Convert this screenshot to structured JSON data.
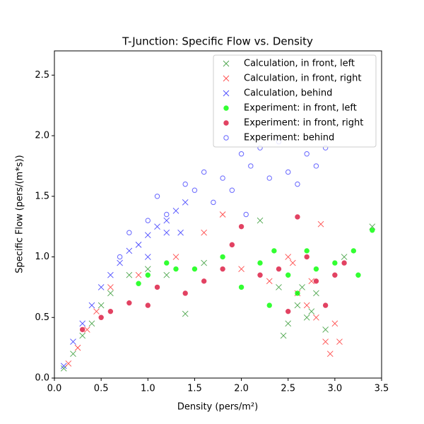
{
  "chart_data": {
    "type": "scatter",
    "title": "T-Junction: Specific Flow vs. Density",
    "x_label": "Density (pers/m²)",
    "y_label": "Specific Flow (pers/(m*s))",
    "xlim": [
      0,
      3.5
    ],
    "ylim": [
      0,
      2.7
    ],
    "xticks": [
      {
        "value": 0,
        "label": "0.0"
      },
      {
        "value": 0.5,
        "label": "0.5"
      },
      {
        "value": 1,
        "label": "1.0"
      },
      {
        "value": 1.5,
        "label": "1.5"
      },
      {
        "value": 2,
        "label": "2.0"
      },
      {
        "value": 2.5,
        "label": "2.5"
      },
      {
        "value": 3,
        "label": "3.0"
      },
      {
        "value": 3.5,
        "label": "3.5"
      }
    ],
    "yticks": [
      {
        "value": 0,
        "label": "0.0"
      },
      {
        "value": 0.5,
        "label": "0.5"
      },
      {
        "value": 1,
        "label": "1.0"
      },
      {
        "value": 1.5,
        "label": "1.5"
      },
      {
        "value": 2,
        "label": "2.0"
      },
      {
        "value": 2.5,
        "label": "2.5"
      }
    ],
    "legend": "upper right",
    "series": [
      {
        "name": "Calculation, in front, left",
        "color": "#008000",
        "marker": "x",
        "filled": false,
        "x": [
          0.1,
          0.2,
          0.3,
          0.4,
          0.5,
          0.6,
          0.8,
          1.0,
          1.2,
          1.4,
          1.6,
          2.2,
          2.4,
          2.5,
          2.6,
          2.7,
          2.8,
          2.9,
          3.1,
          3.4,
          2.45,
          2.65,
          2.75
        ],
        "values": [
          0.08,
          0.2,
          0.35,
          0.45,
          0.6,
          0.7,
          0.85,
          0.9,
          0.85,
          0.53,
          0.95,
          1.3,
          0.75,
          0.45,
          0.6,
          0.5,
          0.7,
          0.4,
          1.0,
          1.25,
          0.35,
          0.75,
          0.55
        ]
      },
      {
        "name": "Calculation, in front, right",
        "color": "#ff0000",
        "marker": "x",
        "filled": false,
        "x": [
          0.15,
          0.25,
          0.35,
          0.45,
          0.6,
          0.9,
          1.3,
          1.6,
          1.8,
          2.0,
          2.3,
          2.5,
          2.6,
          2.7,
          2.8,
          2.9,
          2.95,
          3.0,
          2.85,
          3.05,
          2.55,
          2.75
        ],
        "values": [
          0.12,
          0.25,
          0.4,
          0.55,
          0.75,
          0.85,
          1.0,
          1.2,
          1.35,
          0.9,
          0.8,
          1.0,
          0.7,
          0.6,
          0.5,
          0.3,
          0.2,
          0.45,
          1.27,
          0.3,
          0.95,
          0.8
        ]
      },
      {
        "name": "Calculation, behind",
        "color": "#0000ff",
        "marker": "x",
        "filled": false,
        "x": [
          0.1,
          0.2,
          0.3,
          0.4,
          0.5,
          0.6,
          0.7,
          0.8,
          0.9,
          1.0,
          1.1,
          1.2,
          1.3,
          1.4,
          1.2,
          1.0,
          1.35
        ],
        "values": [
          0.1,
          0.3,
          0.45,
          0.6,
          0.75,
          0.85,
          0.95,
          1.05,
          1.1,
          1.18,
          1.25,
          1.3,
          1.38,
          1.45,
          1.2,
          1.0,
          1.2
        ]
      },
      {
        "name": "Experiment: in front, left",
        "color": "#00ff00",
        "marker": "o",
        "filled": true,
        "x": [
          1.2,
          1.5,
          1.8,
          2.0,
          2.2,
          2.3,
          2.5,
          2.6,
          2.7,
          2.8,
          3.0,
          3.2,
          3.4,
          3.25,
          0.9,
          1.0,
          1.3,
          2.35
        ],
        "values": [
          0.95,
          0.9,
          1.0,
          0.75,
          0.95,
          0.6,
          0.85,
          0.7,
          1.05,
          0.9,
          0.95,
          1.05,
          1.22,
          0.85,
          0.78,
          0.85,
          0.9,
          1.05
        ]
      },
      {
        "name": "Experiment: in front, right",
        "color": "#dc143c",
        "marker": "o",
        "filled": true,
        "x": [
          0.3,
          0.6,
          0.8,
          1.0,
          1.1,
          1.4,
          1.6,
          1.8,
          1.9,
          2.0,
          2.2,
          2.4,
          2.6,
          2.7,
          2.8,
          2.9,
          3.0,
          3.1,
          2.5,
          0.5
        ],
        "values": [
          0.4,
          0.55,
          0.62,
          0.6,
          0.75,
          0.7,
          0.8,
          0.9,
          1.1,
          1.25,
          0.85,
          0.9,
          1.33,
          1.0,
          0.8,
          0.6,
          0.85,
          0.95,
          0.55,
          0.5
        ]
      },
      {
        "name": "Experiment: behind",
        "color": "#0000ff",
        "marker": "o",
        "filled": false,
        "x": [
          0.7,
          0.8,
          1.0,
          1.1,
          1.2,
          1.4,
          1.5,
          1.6,
          1.8,
          1.9,
          2.0,
          2.1,
          2.2,
          2.3,
          2.4,
          2.5,
          2.6,
          2.7,
          2.8,
          2.9,
          1.7,
          2.05
        ],
        "values": [
          1.0,
          1.2,
          1.3,
          1.5,
          1.35,
          1.6,
          1.55,
          1.7,
          1.65,
          1.55,
          1.85,
          1.75,
          1.9,
          1.65,
          1.95,
          1.7,
          1.6,
          1.85,
          1.75,
          1.9,
          1.45,
          1.35
        ]
      }
    ]
  }
}
